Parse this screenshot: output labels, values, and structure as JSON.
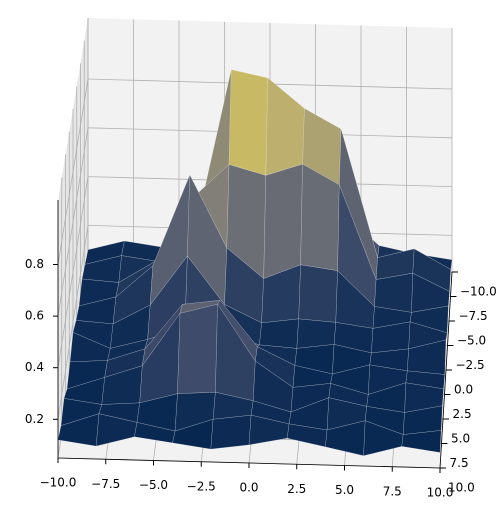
{
  "chart_data": {
    "type": "surface",
    "colormap": "cividis",
    "x": [
      -10,
      -8,
      -6,
      -4,
      -2,
      0,
      2,
      4,
      6,
      8,
      10
    ],
    "y": [
      -10,
      -8,
      -6,
      -4,
      -2,
      0,
      2,
      4,
      6,
      8,
      10
    ],
    "z": [
      [
        0.1,
        0.14,
        0.12,
        0.18,
        0.52,
        0.55,
        0.34,
        0.28,
        0.15,
        0.12,
        0.1
      ],
      [
        0.12,
        0.16,
        0.14,
        0.26,
        0.93,
        0.9,
        0.78,
        0.7,
        0.18,
        0.22,
        0.14
      ],
      [
        0.14,
        0.13,
        0.22,
        0.48,
        0.62,
        0.58,
        0.63,
        0.55,
        0.17,
        0.2,
        0.13
      ],
      [
        0.11,
        0.15,
        0.28,
        0.65,
        0.36,
        0.24,
        0.3,
        0.28,
        0.14,
        0.12,
        0.15
      ],
      [
        0.13,
        0.12,
        0.2,
        0.4,
        0.21,
        0.14,
        0.16,
        0.15,
        0.13,
        0.16,
        0.12
      ],
      [
        0.16,
        0.1,
        0.14,
        0.19,
        0.17,
        0.13,
        0.12,
        0.14,
        0.11,
        0.13,
        0.17
      ],
      [
        0.12,
        0.13,
        0.18,
        0.36,
        0.38,
        0.2,
        0.13,
        0.1,
        0.14,
        0.12,
        0.11
      ],
      [
        0.09,
        0.14,
        0.19,
        0.4,
        0.44,
        0.22,
        0.12,
        0.14,
        0.1,
        0.15,
        0.13
      ],
      [
        0.13,
        0.11,
        0.12,
        0.16,
        0.17,
        0.14,
        0.1,
        0.16,
        0.13,
        0.11,
        0.14
      ],
      [
        0.1,
        0.15,
        0.12,
        0.09,
        0.14,
        0.16,
        0.13,
        0.11,
        0.15,
        0.1,
        0.12
      ],
      [
        0.12,
        0.1,
        0.14,
        0.12,
        0.1,
        0.12,
        0.15,
        0.12,
        0.09,
        0.13,
        0.11
      ]
    ],
    "xlim": [
      -10,
      10
    ],
    "ylim": [
      -10,
      10
    ],
    "zlim": [
      0.05,
      1.05
    ],
    "xticks": [
      {
        "value": -10,
        "label": "−10.0"
      },
      {
        "value": -7.5,
        "label": "−7.5"
      },
      {
        "value": -5,
        "label": "−5.0"
      },
      {
        "value": -2.5,
        "label": "−2.5"
      },
      {
        "value": 0,
        "label": "0.0"
      },
      {
        "value": 2.5,
        "label": "2.5"
      },
      {
        "value": 5,
        "label": "5.0"
      },
      {
        "value": 7.5,
        "label": "7.5"
      },
      {
        "value": 10,
        "label": "10.0"
      }
    ],
    "yticks": [
      {
        "value": -10,
        "label": "−10.0"
      },
      {
        "value": -7.5,
        "label": "−7.5"
      },
      {
        "value": -5,
        "label": "−5.0"
      },
      {
        "value": -2.5,
        "label": "−2.5"
      },
      {
        "value": 0,
        "label": "0.0"
      },
      {
        "value": 2.5,
        "label": "2.5"
      },
      {
        "value": 5,
        "label": "5.0"
      },
      {
        "value": 7.5,
        "label": "7.5"
      },
      {
        "value": 10,
        "label": "10.0"
      }
    ],
    "zticks": [
      0.2,
      0.4,
      0.6,
      0.8
    ],
    "grid": true
  }
}
